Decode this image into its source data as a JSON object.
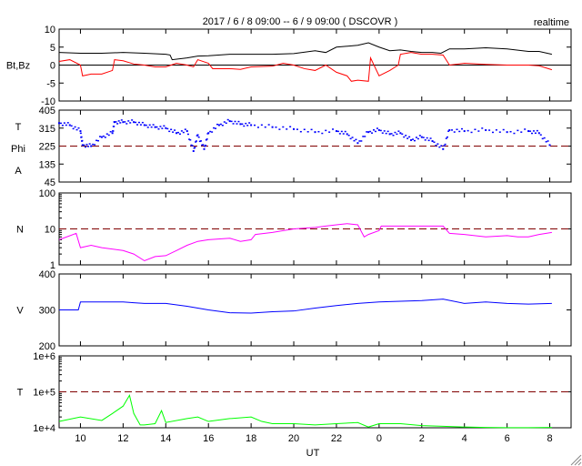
{
  "header": {
    "title": "2017 / 6 / 8   09:00 --  6 / 9   09:00 ( DSCOVR )",
    "mode": "realtime"
  },
  "chart_data": {
    "type": "line",
    "title": "2017 / 6 / 8   09:00 --  6 / 9   09:00 ( DSCOVR )",
    "xlabel": "UT",
    "xlim_hours": [
      9,
      33
    ],
    "xticks": [
      {
        "h": 10,
        "label": "10"
      },
      {
        "h": 12,
        "label": "12"
      },
      {
        "h": 14,
        "label": "14"
      },
      {
        "h": 16,
        "label": "16"
      },
      {
        "h": 18,
        "label": "18"
      },
      {
        "h": 20,
        "label": "20"
      },
      {
        "h": 22,
        "label": "22"
      },
      {
        "h": 24,
        "label": "0"
      },
      {
        "h": 26,
        "label": "2"
      },
      {
        "h": 28,
        "label": "4"
      },
      {
        "h": 30,
        "label": "6"
      },
      {
        "h": 32,
        "label": "8"
      }
    ],
    "panels": [
      {
        "id": "bt-bz",
        "ylabel": "Bt,Bz",
        "ylabel_lines": [
          "Bt,Bz"
        ],
        "scale": "linear",
        "ylim": [
          -10,
          10
        ],
        "yticks": [
          {
            "v": 10,
            "label": "10"
          },
          {
            "v": 5,
            "label": "5"
          },
          {
            "v": 0,
            "label": "0"
          },
          {
            "v": -5,
            "label": "-5"
          },
          {
            "v": -10,
            "label": "-10"
          }
        ],
        "ref": {
          "v": 0,
          "style": "solid",
          "color": "#000000"
        },
        "series": [
          {
            "name": "Bt",
            "color": "#000000",
            "kind": "line",
            "x": [
              9,
              10,
              11,
              12,
              13,
              14,
              14.2,
              14.3,
              15,
              15.5,
              16,
              17,
              18,
              19,
              20,
              21,
              21.5,
              22,
              23,
              23.5,
              24,
              24.5,
              25,
              25.5,
              26,
              26.5,
              26.9,
              27.3,
              28,
              29,
              30,
              31,
              31.5,
              32.1
            ],
            "y": [
              3.5,
              3.3,
              3.3,
              3.5,
              3.3,
              3.0,
              2.8,
              1.5,
              2.0,
              2.5,
              2.6,
              3.0,
              3.0,
              3.0,
              3.2,
              4.0,
              3.5,
              5.0,
              5.5,
              6.2,
              5.0,
              4.0,
              4.2,
              3.8,
              3.5,
              3.5,
              3.3,
              4.5,
              4.5,
              4.8,
              4.5,
              3.8,
              3.8,
              3.0
            ]
          },
          {
            "name": "Bz",
            "color": "#ff0000",
            "kind": "line",
            "x": [
              9,
              9.5,
              10,
              10.1,
              10.5,
              11,
              11.5,
              11.6,
              12,
              12.5,
              13,
              13.5,
              14,
              14.5,
              15,
              15.3,
              15.5,
              16,
              16.2,
              16.5,
              17,
              17.5,
              18,
              19,
              19.5,
              20,
              20.5,
              21,
              21.5,
              22,
              22.5,
              22.7,
              23,
              23.5,
              23.6,
              24,
              24.5,
              24.9,
              25,
              25.5,
              26,
              26.5,
              27,
              27.3,
              28,
              29,
              30,
              31,
              31.5,
              32.1
            ],
            "y": [
              1,
              1.5,
              0,
              -3,
              -2.5,
              -2.5,
              -1.5,
              1.5,
              1.2,
              0.3,
              0,
              -0.5,
              -0.5,
              0.5,
              0,
              -0.5,
              1.5,
              0.5,
              -1,
              -1,
              -1,
              -1.2,
              -0.5,
              -0.3,
              0.5,
              0,
              -1,
              -1.5,
              0,
              -2,
              -3,
              -4.5,
              -4.2,
              -4.5,
              2,
              -3,
              -1.5,
              0,
              3,
              3.5,
              3,
              3,
              2.8,
              0,
              0.5,
              0.2,
              0,
              0,
              -0.2,
              -1.3
            ]
          }
        ]
      },
      {
        "id": "phi",
        "ylabel": "T Phi A",
        "ylabel_lines": [
          "T",
          "Phi",
          "A"
        ],
        "scale": "linear",
        "ylim": [
          45,
          405
        ],
        "yticks": [
          {
            "v": 405,
            "label": "405"
          },
          {
            "v": 315,
            "label": "315"
          },
          {
            "v": 225,
            "label": "225"
          },
          {
            "v": 135,
            "label": "135"
          },
          {
            "v": 45,
            "label": "45"
          }
        ],
        "ref": {
          "v": 225,
          "style": "dashed",
          "color": "#800000"
        },
        "series": [
          {
            "name": "Phi",
            "color": "#0000ff",
            "kind": "scatter",
            "x": [
              9,
              9.5,
              10,
              10.1,
              10.5,
              11,
              11.5,
              11.6,
              12,
              12.5,
              13,
              13.5,
              14,
              14.5,
              15,
              15.3,
              15.5,
              15.8,
              16,
              16.5,
              17,
              17.5,
              18,
              19,
              20,
              21,
              22,
              22.5,
              23,
              23.5,
              24,
              24.5,
              25,
              25.5,
              26,
              26.5,
              27,
              27.3,
              28,
              29,
              30,
              31,
              31.5,
              32
            ],
            "y": [
              340,
              330,
              300,
              230,
              225,
              270,
              290,
              345,
              345,
              345,
              330,
              320,
              315,
              290,
              300,
              200,
              280,
              210,
              290,
              330,
              350,
              335,
              330,
              320,
              310,
              295,
              300,
              285,
              240,
              295,
              305,
              285,
              290,
              255,
              270,
              250,
              210,
              305,
              300,
              305,
              295,
              300,
              290,
              230
            ]
          }
        ]
      },
      {
        "id": "n",
        "ylabel": "N",
        "ylabel_lines": [
          "N"
        ],
        "scale": "log",
        "ylim": [
          1,
          100
        ],
        "yticks": [
          {
            "v": 100,
            "label": "100"
          },
          {
            "v": 10,
            "label": "10"
          },
          {
            "v": 1,
            "label": "1"
          }
        ],
        "ref": {
          "v": 10,
          "style": "dashed",
          "color": "#800000"
        },
        "series": [
          {
            "name": "N",
            "color": "#ff00ff",
            "kind": "line",
            "x": [
              9,
              9.8,
              10,
              10.5,
              11,
              12,
              12.5,
              13,
              13.5,
              14,
              14.5,
              15,
              15.5,
              16,
              17,
              17.5,
              18,
              18.2,
              19,
              20,
              21,
              21.5,
              22,
              22.5,
              23,
              23.3,
              23.5,
              24,
              24.1,
              25,
              26,
              26.5,
              27,
              27.3,
              28,
              29,
              30,
              30.5,
              31,
              31.5,
              32.1
            ],
            "y": [
              5,
              7.5,
              3,
              3.5,
              3,
              2.5,
              2,
              1.3,
              1.7,
              1.8,
              2.5,
              3.5,
              4.5,
              5,
              5.5,
              4.5,
              5,
              7,
              8,
              10,
              11,
              12,
              13,
              14,
              13,
              6,
              7,
              9,
              12,
              12,
              12,
              12,
              12,
              7.5,
              7,
              6,
              6.5,
              6,
              6,
              7,
              8
            ]
          }
        ]
      },
      {
        "id": "v",
        "ylabel": "V",
        "ylabel_lines": [
          "V"
        ],
        "scale": "linear",
        "ylim": [
          200,
          400
        ],
        "yticks": [
          {
            "v": 400,
            "label": "400"
          },
          {
            "v": 300,
            "label": "300"
          },
          {
            "v": 200,
            "label": "200"
          }
        ],
        "series": [
          {
            "name": "V",
            "color": "#0000ff",
            "kind": "line",
            "x": [
              9,
              9.9,
              10,
              11,
              12,
              12.5,
              13,
              14,
              15,
              16,
              17,
              18,
              19,
              20,
              21,
              22,
              23,
              24,
              25,
              26,
              27,
              28,
              29,
              30,
              31,
              32.1
            ],
            "y": [
              300,
              300,
              322,
              322,
              322,
              320,
              318,
              318,
              310,
              300,
              292,
              291,
              295,
              297,
              305,
              312,
              318,
              322,
              324,
              326,
              330,
              318,
              322,
              318,
              316,
              318
            ]
          }
        ]
      },
      {
        "id": "t",
        "ylabel": "T",
        "ylabel_lines": [
          "T"
        ],
        "scale": "log",
        "ylim": [
          10000,
          1000000
        ],
        "yticks": [
          {
            "v": 1000000,
            "label": "1e+6"
          },
          {
            "v": 100000,
            "label": "1e+5"
          },
          {
            "v": 10000,
            "label": "1e+4"
          }
        ],
        "ref": {
          "v": 100000,
          "style": "dashed",
          "color": "#800000"
        },
        "series": [
          {
            "name": "T",
            "color": "#00ff00",
            "kind": "line",
            "x": [
              9,
              10,
              11,
              11.5,
              12,
              12.3,
              12.5,
              12.8,
              13,
              13.5,
              13.8,
              14,
              15,
              15.5,
              16,
              17,
              18,
              18.5,
              19,
              20,
              21,
              22,
              23,
              23.5,
              24,
              25,
              26,
              27,
              28,
              29,
              30,
              31,
              32.1
            ],
            "y": [
              15000,
              20000,
              16000,
              25000,
              40000,
              80000,
              25000,
              12000,
              12000,
              13000,
              30000,
              14000,
              18000,
              20000,
              15000,
              18000,
              20000,
              15000,
              13000,
              13000,
              12000,
              13000,
              14000,
              10500,
              13000,
              13000,
              11500,
              11000,
              10500,
              10200,
              10100,
              10100,
              10200
            ]
          }
        ]
      }
    ]
  }
}
